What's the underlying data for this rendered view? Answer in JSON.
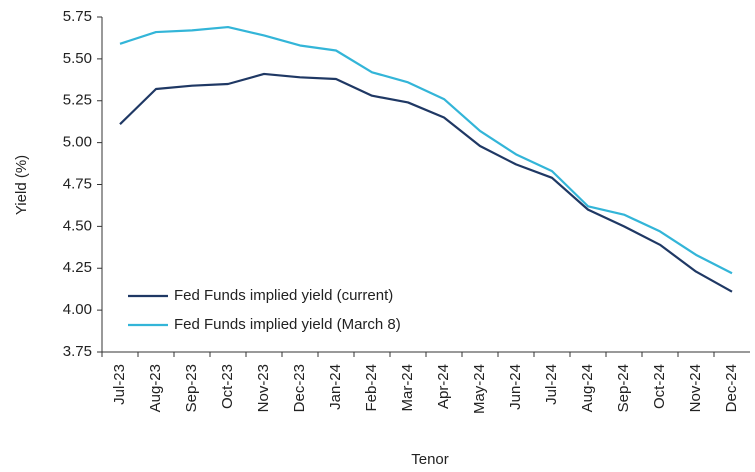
{
  "chart_data": {
    "type": "line",
    "x_label": "Tenor",
    "y_label": "Yield (%)",
    "categories": [
      "Jul-23",
      "Aug-23",
      "Sep-23",
      "Oct-23",
      "Nov-23",
      "Dec-23",
      "Jan-24",
      "Feb-24",
      "Mar-24",
      "Apr-24",
      "May-24",
      "Jun-24",
      "Jul-24",
      "Aug-24",
      "Sep-24",
      "Oct-24",
      "Nov-24",
      "Dec-24"
    ],
    "series": [
      {
        "name": "Fed Funds implied yield (current)",
        "color": "#1f3864",
        "values": [
          5.11,
          5.32,
          5.34,
          5.35,
          5.41,
          5.39,
          5.38,
          5.28,
          5.24,
          5.15,
          4.98,
          4.87,
          4.79,
          4.6,
          4.5,
          4.39,
          4.23,
          4.11
        ]
      },
      {
        "name": "Fed Funds implied yield (March 8)",
        "color": "#33b5d8",
        "values": [
          5.59,
          5.66,
          5.67,
          5.69,
          5.64,
          5.58,
          5.55,
          5.42,
          5.36,
          5.26,
          5.07,
          4.93,
          4.83,
          4.62,
          4.57,
          4.47,
          4.33,
          4.22
        ]
      }
    ],
    "ylim": [
      3.75,
      5.75
    ],
    "yticks": [
      3.75,
      {
        "value": 4,
        "label": "4.00"
      },
      4.25,
      {
        "value": 4.5,
        "label": "4.50"
      },
      4.75,
      {
        "value": 5,
        "label": "5.00"
      },
      5.25,
      {
        "value": 5.5,
        "label": "5.50"
      },
      5.75
    ],
    "legend": "lower-left"
  }
}
